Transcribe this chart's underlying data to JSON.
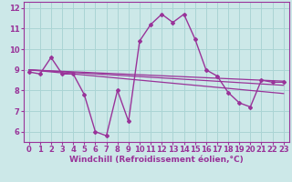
{
  "xlabel": "Windchill (Refroidissement éolien,°C)",
  "xlim": [
    -0.5,
    23.5
  ],
  "ylim": [
    5.5,
    12.3
  ],
  "yticks": [
    6,
    7,
    8,
    9,
    10,
    11,
    12
  ],
  "xticks": [
    0,
    1,
    2,
    3,
    4,
    5,
    6,
    7,
    8,
    9,
    10,
    11,
    12,
    13,
    14,
    15,
    16,
    17,
    18,
    19,
    20,
    21,
    22,
    23
  ],
  "background_color": "#cce8e8",
  "grid_color": "#aad4d4",
  "line_color": "#993399",
  "line1_x": [
    0,
    1,
    2,
    3,
    4,
    5,
    6,
    7,
    8,
    9,
    10,
    11,
    12,
    13,
    14,
    15,
    16,
    17,
    18,
    19,
    20,
    21,
    22,
    23
  ],
  "line1_y": [
    8.9,
    8.8,
    9.6,
    8.8,
    8.8,
    7.8,
    6.0,
    5.8,
    8.0,
    6.5,
    10.4,
    11.2,
    11.7,
    11.3,
    11.7,
    10.5,
    9.0,
    8.7,
    7.9,
    7.4,
    7.2,
    8.5,
    8.4,
    8.4
  ],
  "line2_x": [
    0,
    23
  ],
  "line2_y": [
    9.0,
    8.45
  ],
  "line3_x": [
    0,
    23
  ],
  "line3_y": [
    9.0,
    8.25
  ],
  "line4_x": [
    0,
    23
  ],
  "line4_y": [
    9.0,
    7.85
  ],
  "xlabel_fontsize": 6.5,
  "tick_fontsize": 6.0
}
